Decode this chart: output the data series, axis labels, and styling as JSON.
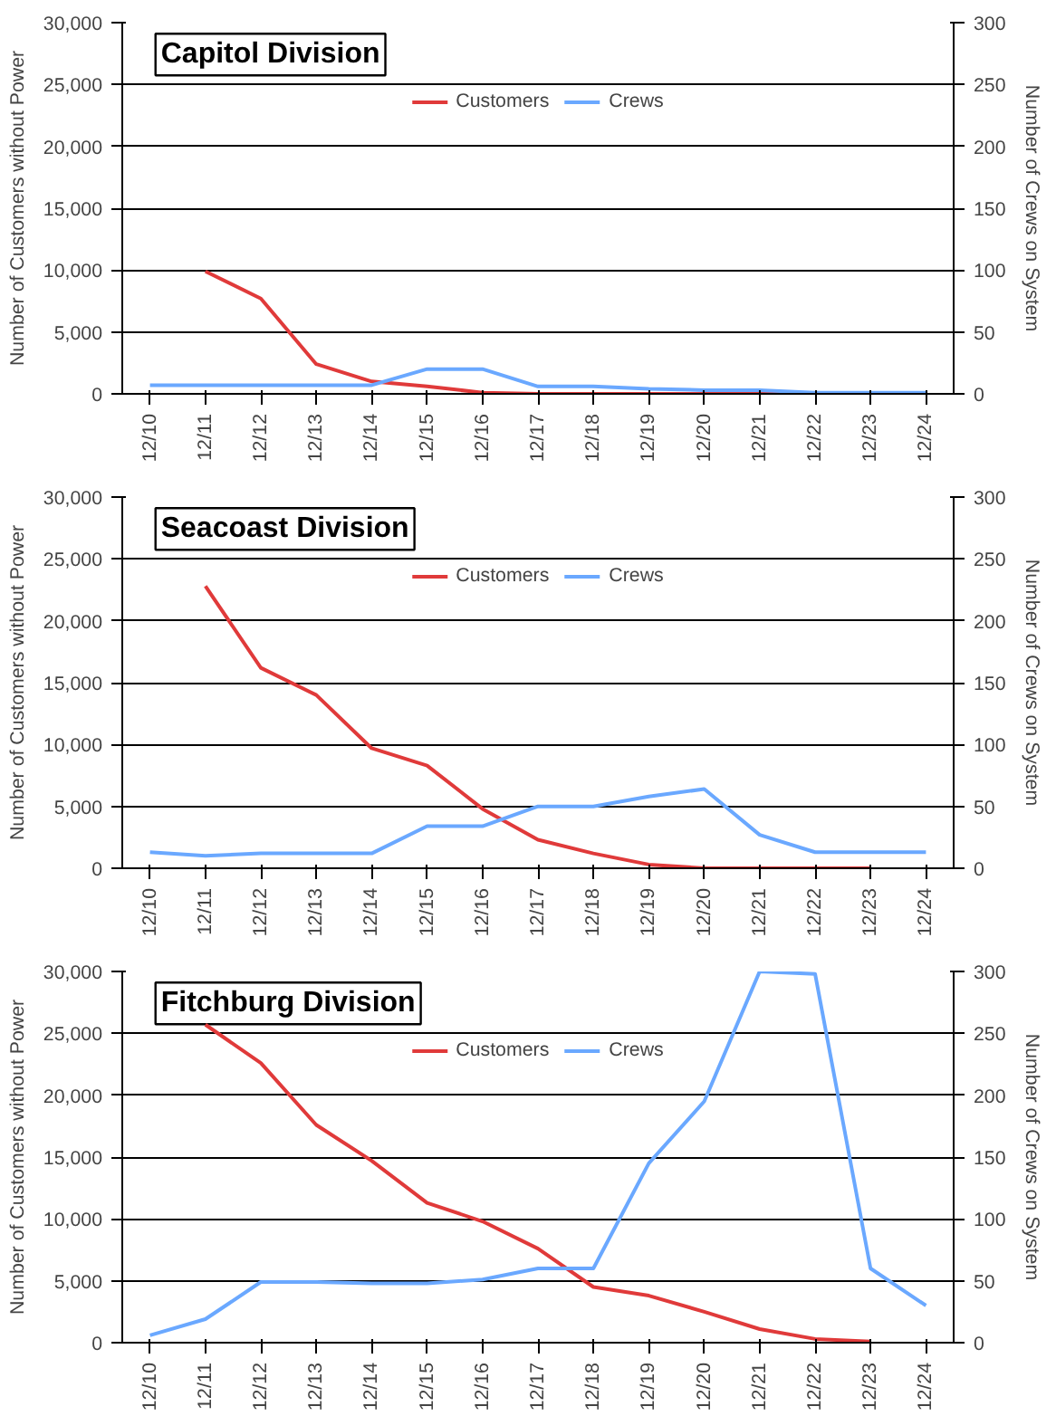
{
  "chart_data": [
    {
      "type": "line",
      "title": "Capitol Division",
      "ylabel": "Number of Customers without Power",
      "y2label": "Number of Crews on System",
      "categories": [
        "12/10",
        "12/11",
        "12/12",
        "12/13",
        "12/14",
        "12/15",
        "12/16",
        "12/17",
        "12/18",
        "12/19",
        "12/20",
        "12/21",
        "12/22",
        "12/23",
        "12/24"
      ],
      "series": [
        {
          "name": "Customers",
          "color": "#e03a3a",
          "values": [
            null,
            9900,
            7700,
            2400,
            1000,
            600,
            100,
            0,
            0,
            0,
            0,
            0,
            0,
            0,
            null
          ]
        },
        {
          "name": "Crews",
          "color": "#6aa8ff",
          "axis": "y2",
          "values": [
            7,
            7,
            7,
            7,
            7,
            20,
            20,
            6,
            6,
            4,
            3,
            3,
            1,
            1,
            1
          ]
        }
      ],
      "ylim": [
        0,
        30000
      ],
      "yticks": [
        {
          "value": 0,
          "label": "0"
        },
        {
          "value": 5000,
          "label": "5,000"
        },
        {
          "value": 10000,
          "label": "10,000"
        },
        {
          "value": 15000,
          "label": "15,000"
        },
        {
          "value": 20000,
          "label": "20,000"
        },
        {
          "value": 25000,
          "label": "25,000"
        },
        {
          "value": 30000,
          "label": "30,000"
        }
      ],
      "y2lim": [
        0,
        300
      ],
      "y2ticks": [
        0,
        50,
        100,
        150,
        200,
        250,
        300
      ],
      "grid": "y",
      "legend": "top"
    },
    {
      "type": "line",
      "title": "Seacoast Division",
      "ylabel": "Number of Customers without Power",
      "y2label": "Number of Crews on System",
      "categories": [
        "12/10",
        "12/11",
        "12/12",
        "12/13",
        "12/14",
        "12/15",
        "12/16",
        "12/17",
        "12/18",
        "12/19",
        "12/20",
        "12/21",
        "12/22",
        "12/23",
        "12/24"
      ],
      "series": [
        {
          "name": "Customers",
          "color": "#e03a3a",
          "values": [
            null,
            22800,
            16200,
            14000,
            9700,
            8300,
            4800,
            2300,
            1200,
            300,
            0,
            0,
            0,
            0,
            null
          ]
        },
        {
          "name": "Crews",
          "color": "#6aa8ff",
          "axis": "y2",
          "values": [
            13,
            10,
            12,
            12,
            12,
            34,
            34,
            50,
            50,
            58,
            64,
            27,
            13,
            13,
            13
          ]
        }
      ],
      "ylim": [
        0,
        30000
      ],
      "yticks": [
        {
          "value": 0,
          "label": "0"
        },
        {
          "value": 5000,
          "label": "5,000"
        },
        {
          "value": 10000,
          "label": "10,000"
        },
        {
          "value": 15000,
          "label": "15,000"
        },
        {
          "value": 20000,
          "label": "20,000"
        },
        {
          "value": 25000,
          "label": "25,000"
        },
        {
          "value": 30000,
          "label": "30,000"
        }
      ],
      "y2lim": [
        0,
        300
      ],
      "y2ticks": [
        0,
        50,
        100,
        150,
        200,
        250,
        300
      ],
      "grid": "y",
      "legend": "top"
    },
    {
      "type": "line",
      "title": "Fitchburg Division",
      "ylabel": "Number of Customers without Power",
      "y2label": "Number of Crews on System",
      "categories": [
        "12/10",
        "12/11",
        "12/12",
        "12/13",
        "12/14",
        "12/15",
        "12/16",
        "12/17",
        "12/18",
        "12/19",
        "12/20",
        "12/21",
        "12/22",
        "12/23",
        "12/24"
      ],
      "series": [
        {
          "name": "Customers",
          "color": "#e03a3a",
          "values": [
            null,
            25700,
            22600,
            17600,
            14700,
            11300,
            9800,
            7600,
            4500,
            3800,
            2500,
            1100,
            300,
            100,
            null
          ]
        },
        {
          "name": "Crews",
          "color": "#6aa8ff",
          "axis": "y2",
          "values": [
            6,
            19,
            49,
            49,
            48,
            48,
            51,
            60,
            60,
            145,
            195,
            300,
            298,
            60,
            30
          ]
        }
      ],
      "ylim": [
        0,
        30000
      ],
      "yticks": [
        {
          "value": 0,
          "label": "0"
        },
        {
          "value": 5000,
          "label": "5,000"
        },
        {
          "value": 10000,
          "label": "10,000"
        },
        {
          "value": 15000,
          "label": "15,000"
        },
        {
          "value": 20000,
          "label": "20,000"
        },
        {
          "value": 25000,
          "label": "25,000"
        },
        {
          "value": 30000,
          "label": "30,000"
        }
      ],
      "y2lim": [
        0,
        300
      ],
      "y2ticks": [
        0,
        50,
        100,
        150,
        200,
        250,
        300
      ],
      "grid": "y",
      "legend": "top"
    }
  ]
}
